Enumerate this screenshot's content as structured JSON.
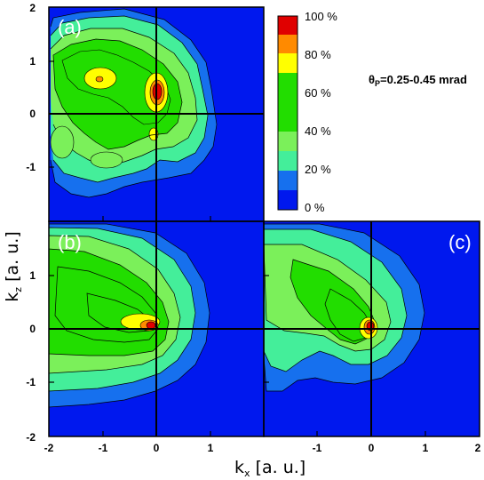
{
  "chart_data": {
    "type": "heatmap",
    "annotation": "θp=0.25-0.45 mrad",
    "annotation_main": "θ",
    "annotation_sub": "P",
    "annotation_rest": "=0.25-0.45 mrad",
    "xlabel_main": "k",
    "xlabel_sub": "x",
    "xlabel_rest": " [a. u.]",
    "ylabel_main": "k",
    "ylabel_sub": "z",
    "ylabel_rest": " [a. u.]",
    "xlim": [
      -2,
      2
    ],
    "ylim": [
      -2,
      2
    ],
    "x_ticks": [
      "-2",
      "-1",
      "0",
      "1",
      "2"
    ],
    "y_ticks": [
      "2",
      "1",
      "0",
      "-1",
      "-2"
    ],
    "colorbar": {
      "labels": [
        "100 %",
        "80 %",
        "60 %",
        "40 %",
        "20 %",
        "0 %"
      ],
      "colors": [
        "#e00000",
        "#ff8a00",
        "#ffff00",
        "#22dd00",
        "#7bf05a",
        "#44ee9a",
        "#1670ee",
        "#0018ee"
      ],
      "levels": [
        0,
        10,
        20,
        30,
        40,
        50,
        60,
        70,
        80,
        90,
        100
      ]
    },
    "panels": [
      {
        "label": "(a)",
        "peaks": [
          {
            "x": 0.05,
            "y": 0.35,
            "value": 100
          },
          {
            "x": -1.0,
            "y": 0.65,
            "value": 85
          },
          {
            "x": 0.0,
            "y": -0.35,
            "value": 75
          },
          {
            "x": -0.45,
            "y": 0.4,
            "value": 55
          },
          {
            "x": -1.55,
            "y": 0.5,
            "value": 50
          },
          {
            "x": -1.8,
            "y": -0.5,
            "value": 40
          },
          {
            "x": -0.8,
            "y": -0.9,
            "value": 35
          }
        ]
      },
      {
        "label": "(b)",
        "peaks": [
          {
            "x": -0.1,
            "y": 0.05,
            "value": 100
          },
          {
            "x": -1.0,
            "y": 0.2,
            "value": 60
          }
        ]
      },
      {
        "label": "(c)",
        "peaks": [
          {
            "x": 0.0,
            "y": 0.05,
            "value": 100
          },
          {
            "x": -0.8,
            "y": 0.6,
            "value": 45
          }
        ]
      }
    ]
  }
}
